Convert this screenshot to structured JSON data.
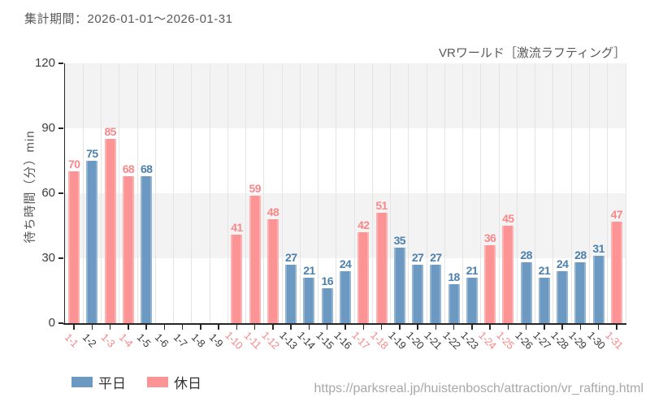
{
  "header": {
    "period_label": "集計期間：2026-01-01～2026-01-31"
  },
  "chart_title": "VRワールド［激流ラフティング］",
  "footer": {
    "url": "https://parksreal.jp/huistenbosch/attraction/vr_rafting.html"
  },
  "legend": {
    "weekday_label": "平日",
    "holiday_label": "休日"
  },
  "colors": {
    "weekday_bar": "#6b99c1",
    "holiday_bar": "#fc9394",
    "weekday_value_text": "#4d80ac",
    "holiday_value_text": "#f9888a",
    "weekday_tick_text": "#3c3c3c",
    "holiday_tick_text": "#f9888a",
    "band_fill": "#f3f3f3",
    "grid_line": "#e4e4e4",
    "axis_line": "#262626"
  },
  "chart_data": {
    "type": "bar",
    "title": "VRワールド［激流ラフティング］",
    "xlabel": "",
    "ylabel": "待ち時間（分）min",
    "ylim": [
      0,
      120
    ],
    "y_ticks": [
      0,
      30,
      60,
      90,
      120
    ],
    "grid": "vertical-gridlines-with-alternating-horizontal-bands",
    "bands": [
      [
        30,
        60
      ],
      [
        90,
        120
      ]
    ],
    "legend_position": "bottom-left",
    "categories": [
      "1-1",
      "1-2",
      "1-3",
      "1-4",
      "1-5",
      "1-6",
      "1-7",
      "1-8",
      "1-9",
      "1-10",
      "1-11",
      "1-12",
      "1-13",
      "1-14",
      "1-15",
      "1-16",
      "1-17",
      "1-18",
      "1-19",
      "1-20",
      "1-21",
      "1-22",
      "1-23",
      "1-24",
      "1-25",
      "1-26",
      "1-27",
      "1-28",
      "1-29",
      "1-30",
      "1-31"
    ],
    "values": [
      70,
      75,
      85,
      68,
      68,
      null,
      null,
      null,
      null,
      41,
      59,
      48,
      27,
      21,
      16,
      24,
      42,
      51,
      35,
      27,
      27,
      18,
      21,
      36,
      45,
      28,
      21,
      24,
      28,
      31,
      47
    ],
    "day_types": [
      "holiday",
      "weekday",
      "holiday",
      "holiday",
      "weekday",
      "weekday",
      "weekday",
      "weekday",
      "weekday",
      "holiday",
      "holiday",
      "holiday",
      "weekday",
      "weekday",
      "weekday",
      "weekday",
      "holiday",
      "holiday",
      "weekday",
      "weekday",
      "weekday",
      "weekday",
      "weekday",
      "holiday",
      "holiday",
      "weekday",
      "weekday",
      "weekday",
      "weekday",
      "weekday",
      "holiday"
    ],
    "series": [
      {
        "name": "平日",
        "type_key": "weekday",
        "color": "#6b99c1"
      },
      {
        "name": "休日",
        "type_key": "holiday",
        "color": "#fc9394"
      }
    ]
  }
}
